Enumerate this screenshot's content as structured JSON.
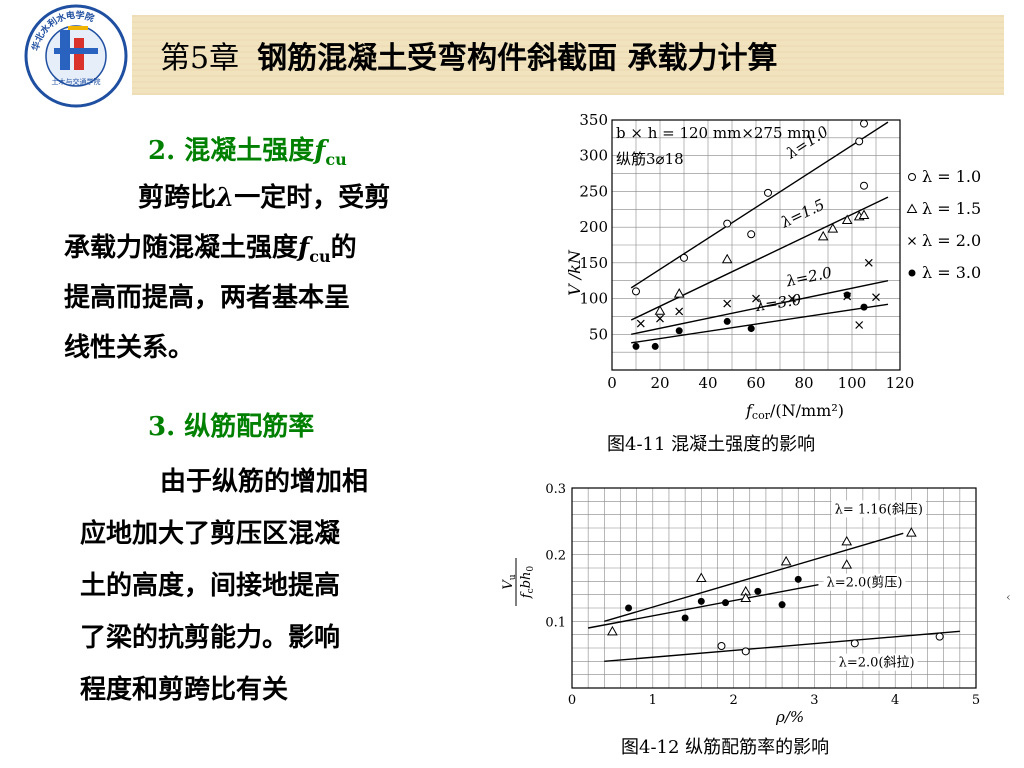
{
  "header": {
    "chapter": "第5章",
    "title": "钢筋混凝土受弯构件斜截面  承载力计算"
  },
  "left": {
    "sec2": {
      "num": "2. ",
      "label": "混凝土强度",
      "symbol": "f",
      "symbol_sub": "cu"
    },
    "para2": {
      "line1_a": "剪跨比",
      "line1_sym": "λ",
      "line1_b": "一定时，受剪",
      "line2_a": "承载力随混凝土强度",
      "line2_sym": "f",
      "line2_sub": "cu",
      "line2_b": "的",
      "line3": "提高而提高，两者基本呈",
      "line4": "线性关系。"
    },
    "sec3": {
      "num": "3. ",
      "label": "纵筋配筋率"
    },
    "para3": {
      "line1": "由于纵筋的增加相",
      "line2": "应地加大了剪压区混凝",
      "line3": "土的高度，间接地提高",
      "line4": "了梁的抗剪能力。影响",
      "line5": "程度和剪跨比有关"
    }
  },
  "fig1": {
    "caption": "图4-11 混凝土强度的影响",
    "annot1": "b × h = 120 mm×275 mm",
    "annot2": "纵筋3⌀18",
    "ylabel": "V /kN",
    "xlabel": "f",
    "xlabel_sub": "cor",
    "xlabel_unit": "/(N/mm²)",
    "legend": [
      "λ = 1.0",
      "λ = 1.5",
      "λ = 2.0",
      "λ = 3.0"
    ],
    "line_labels": [
      "λ=1.0",
      "λ=1.5",
      "λ=2.0",
      "λ=3.0"
    ]
  },
  "fig2": {
    "caption": "图4-12  纵筋配筋率的影响",
    "xlabel": "ρ/%",
    "ylabel_num": "V",
    "ylabel_num_sub": "u",
    "ylabel_den": "f",
    "ylabel_den_sub": "c",
    "ylabel_den_tail": "bh",
    "ylabel_den_tail_sub": "0",
    "line_labels": [
      "λ= 1.16(斜压)",
      "λ=2.0(剪压)",
      "λ=2.0(斜拉)"
    ]
  },
  "logo": {
    "ring_text": "华北水利水电学院",
    "inner_text": "土木与交通学院"
  },
  "chart_data": [
    {
      "type": "scatter",
      "title": "",
      "xlabel": "fcor/(N/mm²)",
      "ylabel": "V/kN",
      "xlim": [
        0,
        120
      ],
      "ylim": [
        0,
        350
      ],
      "x_ticks": [
        0,
        20,
        40,
        60,
        80,
        100,
        120
      ],
      "y_ticks": [
        50,
        100,
        150,
        200,
        250,
        300,
        350
      ],
      "grid": true,
      "legend_position": "right",
      "series": [
        {
          "name": "λ = 1.0",
          "marker": "circle-open",
          "points": [
            [
              10,
              110
            ],
            [
              30,
              157
            ],
            [
              48,
              205
            ],
            [
              58,
              190
            ],
            [
              65,
              248
            ],
            [
              103,
              320
            ],
            [
              105,
              345
            ],
            [
              105,
              258
            ]
          ],
          "fit": [
            [
              8,
              115
            ],
            [
              115,
              347
            ]
          ]
        },
        {
          "name": "λ = 1.5",
          "marker": "triangle-open",
          "points": [
            [
              20,
              83
            ],
            [
              28,
              107
            ],
            [
              48,
              155
            ],
            [
              88,
              187
            ],
            [
              98,
              210
            ],
            [
              103,
              215
            ],
            [
              105,
              217
            ],
            [
              92,
              198
            ]
          ],
          "fit": [
            [
              8,
              70
            ],
            [
              115,
              242
            ]
          ]
        },
        {
          "name": "λ = 2.0",
          "marker": "x",
          "points": [
            [
              12,
              65
            ],
            [
              20,
              72
            ],
            [
              28,
              82
            ],
            [
              48,
              93
            ],
            [
              60,
              100
            ],
            [
              75,
              100
            ],
            [
              98,
              103
            ],
            [
              107,
              150
            ],
            [
              110,
              102
            ],
            [
              103,
              63
            ]
          ],
          "fit": [
            [
              8,
              50
            ],
            [
              115,
              125
            ]
          ]
        },
        {
          "name": "λ = 3.0",
          "marker": "dot",
          "points": [
            [
              10,
              33
            ],
            [
              18,
              33
            ],
            [
              28,
              55
            ],
            [
              48,
              68
            ],
            [
              58,
              58
            ],
            [
              98,
              105
            ],
            [
              105,
              88
            ]
          ],
          "fit": [
            [
              8,
              38
            ],
            [
              115,
              92
            ]
          ]
        }
      ]
    },
    {
      "type": "scatter",
      "title": "",
      "xlabel": "ρ/%",
      "ylabel": "Vu/(fc b h0)",
      "xlim": [
        0,
        5
      ],
      "ylim": [
        0,
        0.3
      ],
      "x_ticks": [
        0,
        1,
        2,
        3,
        4,
        5
      ],
      "y_ticks": [
        0.1,
        0.2,
        0.3
      ],
      "grid": true,
      "series": [
        {
          "name": "λ= 1.16(斜压)",
          "marker": "triangle-open",
          "points": [
            [
              0.5,
              0.085
            ],
            [
              1.6,
              0.165
            ],
            [
              2.15,
              0.145
            ],
            [
              2.15,
              0.135
            ],
            [
              2.65,
              0.19
            ],
            [
              3.4,
              0.22
            ],
            [
              3.4,
              0.185
            ],
            [
              4.2,
              0.233
            ]
          ],
          "fit": [
            [
              0.4,
              0.1
            ],
            [
              4.1,
              0.232
            ]
          ]
        },
        {
          "name": "λ=2.0(剪压)",
          "marker": "dot",
          "points": [
            [
              0.7,
              0.12
            ],
            [
              1.4,
              0.105
            ],
            [
              1.6,
              0.13
            ],
            [
              1.9,
              0.128
            ],
            [
              2.3,
              0.145
            ],
            [
              2.6,
              0.125
            ],
            [
              2.8,
              0.163
            ]
          ],
          "fit": [
            [
              0.2,
              0.09
            ],
            [
              3.05,
              0.155
            ]
          ]
        },
        {
          "name": "λ=2.0(斜拉)",
          "marker": "circle-open",
          "points": [
            [
              1.85,
              0.063
            ],
            [
              2.15,
              0.055
            ],
            [
              3.5,
              0.067
            ],
            [
              4.55,
              0.077
            ]
          ],
          "fit": [
            [
              0.4,
              0.04
            ],
            [
              4.8,
              0.085
            ]
          ]
        }
      ]
    }
  ]
}
